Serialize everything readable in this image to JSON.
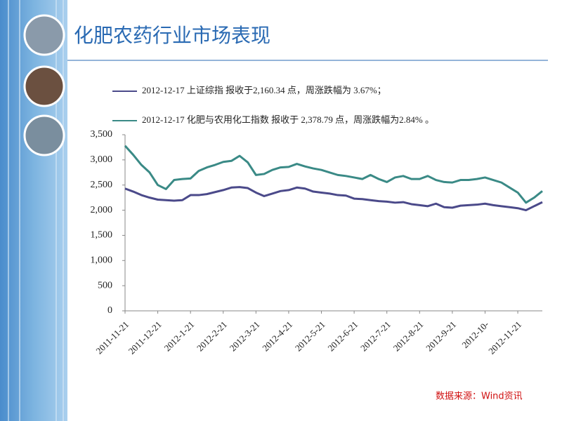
{
  "title": "化肥农药行业市场表现",
  "source": "数据来源：Wind资讯",
  "chart_data": {
    "type": "line",
    "categories": [
      "2011-11-21",
      null,
      null,
      null,
      "2011-12-21",
      null,
      null,
      null,
      "2012-1-21",
      null,
      null,
      null,
      "2012-2-21",
      null,
      null,
      null,
      "2012-3-21",
      null,
      null,
      null,
      "2012-4-21",
      null,
      null,
      null,
      "2012-5-21",
      null,
      null,
      null,
      "2012-6-21",
      null,
      null,
      null,
      "2012-7-21",
      null,
      null,
      null,
      "2012-8-21",
      null,
      null,
      null,
      "2012-9-21",
      null,
      null,
      null,
      "2012-10-",
      null,
      null,
      null,
      "2012-11-21",
      null,
      null,
      null
    ],
    "series": [
      {
        "name": "2012-12-17 上证综指 报收于2,160.34 点，周涨跌幅为 3.67%；",
        "color": "#4b4a8a",
        "values": [
          2430,
          2370,
          2300,
          2250,
          2210,
          2200,
          2190,
          2200,
          2300,
          2300,
          2320,
          2360,
          2400,
          2450,
          2460,
          2440,
          2350,
          2280,
          2330,
          2380,
          2400,
          2450,
          2430,
          2370,
          2350,
          2330,
          2300,
          2290,
          2230,
          2220,
          2200,
          2180,
          2170,
          2150,
          2160,
          2120,
          2100,
          2080,
          2130,
          2060,
          2050,
          2090,
          2100,
          2110,
          2130,
          2100,
          2080,
          2060,
          2040,
          2000,
          2080,
          2160
        ]
      },
      {
        "name": "2012-12-17 化肥与农用化工指数 报收于 2,378.79 点，周涨跌幅为2.84% 。",
        "color": "#3a8a86",
        "values": [
          3280,
          3100,
          2900,
          2750,
          2500,
          2420,
          2600,
          2620,
          2630,
          2780,
          2850,
          2900,
          2960,
          2980,
          3080,
          2950,
          2700,
          2720,
          2800,
          2850,
          2860,
          2920,
          2870,
          2830,
          2800,
          2750,
          2700,
          2680,
          2650,
          2620,
          2700,
          2620,
          2560,
          2650,
          2680,
          2620,
          2620,
          2680,
          2600,
          2560,
          2550,
          2600,
          2600,
          2620,
          2650,
          2600,
          2550,
          2450,
          2350,
          2150,
          2250,
          2380
        ]
      }
    ],
    "ylim": [
      0,
      3500
    ],
    "yticks": [
      0,
      500,
      {
        "value": 1000,
        "label": "1,000"
      },
      {
        "value": 1500,
        "label": "1,500"
      },
      {
        "value": 2000,
        "label": "2,000"
      },
      {
        "value": 2500,
        "label": "2,500"
      },
      {
        "value": 3000,
        "label": "3,000"
      },
      {
        "value": 3500,
        "label": "3,500"
      }
    ],
    "grid": false
  }
}
